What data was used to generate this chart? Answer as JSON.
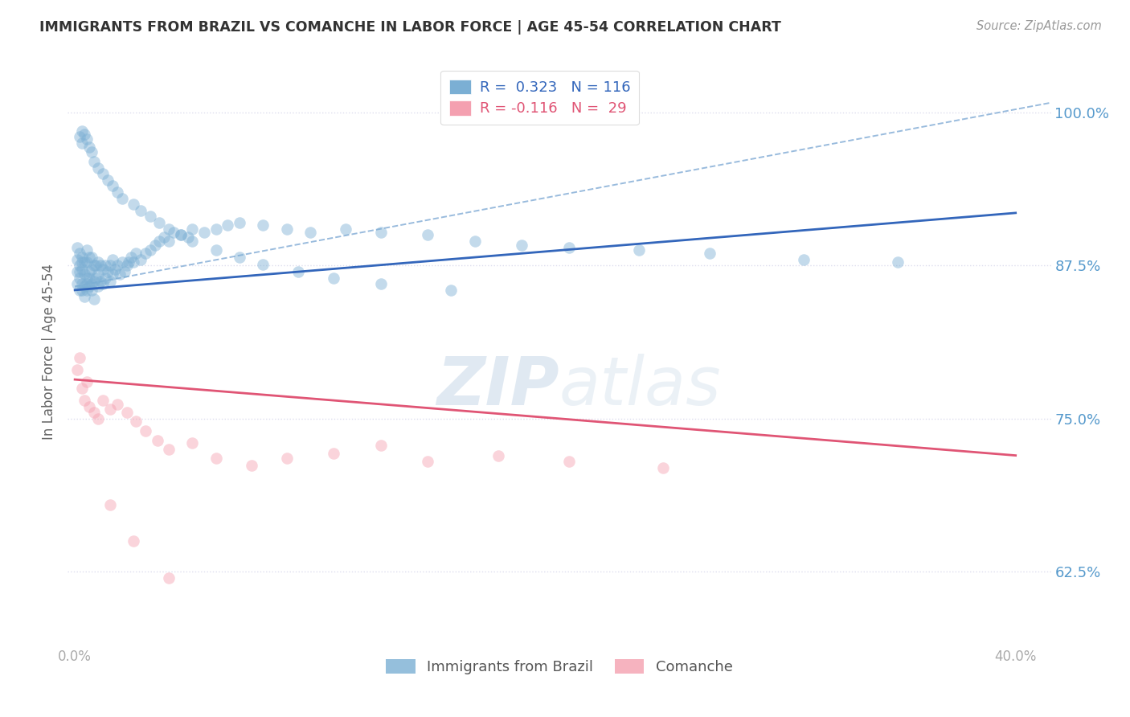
{
  "title": "IMMIGRANTS FROM BRAZIL VS COMANCHE IN LABOR FORCE | AGE 45-54 CORRELATION CHART",
  "source_text": "Source: ZipAtlas.com",
  "ylabel": "In Labor Force | Age 45-54",
  "ytick_values": [
    1.0,
    0.875,
    0.75,
    0.625
  ],
  "ylim": [
    0.565,
    1.045
  ],
  "xlim": [
    -0.003,
    0.415
  ],
  "brazil_R": "0.323",
  "brazil_N": "116",
  "comanche_R": "-0.116",
  "comanche_N": "29",
  "brazil_color": "#7bafd4",
  "brazil_line_color": "#3366bb",
  "comanche_color": "#f4a0b0",
  "comanche_line_color": "#e05575",
  "dashed_line_color": "#99bbdd",
  "watermark_color": "#c8d8e8",
  "title_color": "#333333",
  "source_color": "#999999",
  "ytick_color": "#5599cc",
  "xtick_color": "#aaaaaa",
  "grid_color": "#ddddee",
  "background_color": "#ffffff",
  "brazil_scatter_x": [
    0.001,
    0.001,
    0.001,
    0.001,
    0.002,
    0.002,
    0.002,
    0.002,
    0.002,
    0.003,
    0.003,
    0.003,
    0.003,
    0.003,
    0.004,
    0.004,
    0.004,
    0.004,
    0.005,
    0.005,
    0.005,
    0.005,
    0.005,
    0.006,
    0.006,
    0.006,
    0.006,
    0.007,
    0.007,
    0.007,
    0.007,
    0.008,
    0.008,
    0.008,
    0.009,
    0.009,
    0.01,
    0.01,
    0.01,
    0.011,
    0.011,
    0.012,
    0.012,
    0.013,
    0.013,
    0.014,
    0.015,
    0.015,
    0.016,
    0.016,
    0.017,
    0.018,
    0.019,
    0.02,
    0.021,
    0.022,
    0.023,
    0.024,
    0.025,
    0.026,
    0.028,
    0.03,
    0.032,
    0.034,
    0.036,
    0.038,
    0.04,
    0.042,
    0.045,
    0.048,
    0.05,
    0.055,
    0.06,
    0.065,
    0.07,
    0.08,
    0.09,
    0.1,
    0.115,
    0.13,
    0.15,
    0.17,
    0.19,
    0.21,
    0.24,
    0.27,
    0.31,
    0.35,
    0.002,
    0.003,
    0.003,
    0.004,
    0.005,
    0.006,
    0.007,
    0.008,
    0.01,
    0.012,
    0.014,
    0.016,
    0.018,
    0.02,
    0.025,
    0.028,
    0.032,
    0.036,
    0.04,
    0.045,
    0.05,
    0.06,
    0.07,
    0.08,
    0.095,
    0.11,
    0.13,
    0.16
  ],
  "brazil_scatter_y": [
    0.87,
    0.88,
    0.86,
    0.89,
    0.855,
    0.87,
    0.885,
    0.875,
    0.865,
    0.86,
    0.872,
    0.882,
    0.855,
    0.878,
    0.858,
    0.868,
    0.878,
    0.85,
    0.855,
    0.865,
    0.878,
    0.888,
    0.86,
    0.858,
    0.87,
    0.882,
    0.865,
    0.86,
    0.872,
    0.882,
    0.855,
    0.862,
    0.875,
    0.848,
    0.865,
    0.875,
    0.858,
    0.868,
    0.878,
    0.862,
    0.875,
    0.86,
    0.872,
    0.865,
    0.875,
    0.87,
    0.862,
    0.875,
    0.868,
    0.88,
    0.872,
    0.875,
    0.868,
    0.878,
    0.87,
    0.875,
    0.878,
    0.882,
    0.878,
    0.885,
    0.88,
    0.885,
    0.888,
    0.892,
    0.895,
    0.898,
    0.895,
    0.902,
    0.9,
    0.898,
    0.905,
    0.902,
    0.905,
    0.908,
    0.91,
    0.908,
    0.905,
    0.902,
    0.905,
    0.902,
    0.9,
    0.895,
    0.892,
    0.89,
    0.888,
    0.885,
    0.88,
    0.878,
    0.98,
    0.985,
    0.975,
    0.982,
    0.978,
    0.972,
    0.968,
    0.96,
    0.955,
    0.95,
    0.945,
    0.94,
    0.935,
    0.93,
    0.925,
    0.92,
    0.915,
    0.91,
    0.905,
    0.9,
    0.895,
    0.888,
    0.882,
    0.876,
    0.87,
    0.865,
    0.86,
    0.855
  ],
  "comanche_scatter_x": [
    0.001,
    0.002,
    0.003,
    0.004,
    0.005,
    0.006,
    0.008,
    0.01,
    0.012,
    0.015,
    0.018,
    0.022,
    0.026,
    0.03,
    0.035,
    0.04,
    0.05,
    0.06,
    0.075,
    0.09,
    0.11,
    0.13,
    0.15,
    0.18,
    0.21,
    0.25,
    0.015,
    0.025,
    0.04
  ],
  "comanche_scatter_y": [
    0.79,
    0.8,
    0.775,
    0.765,
    0.78,
    0.76,
    0.755,
    0.75,
    0.765,
    0.758,
    0.762,
    0.755,
    0.748,
    0.74,
    0.732,
    0.725,
    0.73,
    0.718,
    0.712,
    0.718,
    0.722,
    0.728,
    0.715,
    0.72,
    0.715,
    0.71,
    0.68,
    0.65,
    0.62
  ],
  "brazil_trend_x": [
    0.0,
    0.4
  ],
  "brazil_trend_y": [
    0.855,
    0.918
  ],
  "comanche_trend_x": [
    0.0,
    0.4
  ],
  "comanche_trend_y": [
    0.782,
    0.72
  ],
  "dashed_trend_x": [
    0.0,
    0.415
  ],
  "dashed_trend_y": [
    0.858,
    1.008
  ],
  "marker_size": 110,
  "marker_alpha": 0.45,
  "line_width": 2.0
}
